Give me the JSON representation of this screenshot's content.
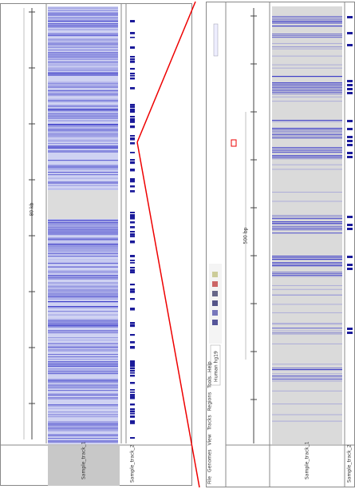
{
  "left_panel": {
    "ruler_label": "80 kb",
    "track_names": [
      "Sample_track_1",
      "Sample_track_2"
    ]
  },
  "right_panel": {
    "menu": [
      "File",
      "Genomes",
      "View",
      "Tracks",
      "Regions",
      "Tools",
      "Help"
    ],
    "genome": "Human hg19",
    "ruler_label": "500 bp",
    "track_names": [
      "Sample_track_1",
      "Sample_track_2"
    ]
  }
}
